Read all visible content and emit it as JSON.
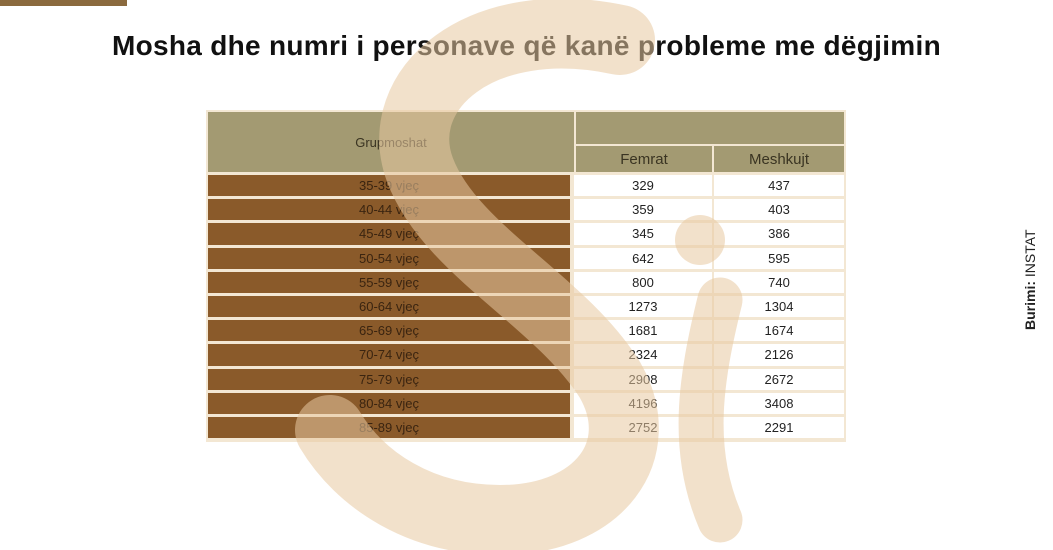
{
  "header": {
    "title": "Mosha dhe numri i personave që kanë probleme me dëgjimin"
  },
  "table": {
    "group_header": "Grupmoshat",
    "columns": [
      "Femrat",
      "Meshkujt"
    ],
    "rows": [
      [
        "35-39 vjeç",
        "329",
        "437"
      ],
      [
        "40-44 vjeç",
        "359",
        "403"
      ],
      [
        "45-49 vjeç",
        "345",
        "386"
      ],
      [
        "50-54 vjeç",
        "642",
        "595"
      ],
      [
        "55-59 vjeç",
        "800",
        "740"
      ],
      [
        "60-64 vjeç",
        "1273",
        "1304"
      ],
      [
        "65-69 vjeç",
        "1681",
        "1674"
      ],
      [
        "70-74 vjeç",
        "2324",
        "2126"
      ],
      [
        "75-79 vjeç",
        "2908",
        "2672"
      ],
      [
        "80-84 vjeç",
        "4196",
        "3408"
      ],
      [
        "85-89 vjeç",
        "2752",
        "2291"
      ]
    ]
  },
  "source": {
    "label": "Burimi:",
    "name": "INSTAT"
  }
}
